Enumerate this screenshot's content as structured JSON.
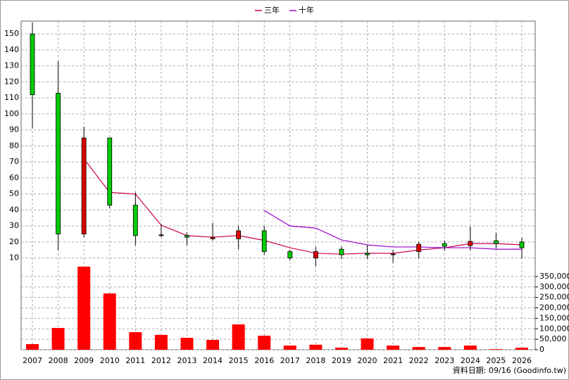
{
  "chart_data": {
    "type": "candlestick",
    "categories": [
      "2007",
      "2008",
      "2009",
      "2010",
      "2011",
      "2012",
      "2013",
      "2014",
      "2015",
      "2016",
      "2017",
      "2018",
      "2019",
      "2020",
      "2021",
      "2022",
      "2023",
      "2024",
      "2025",
      "2026"
    ],
    "open": [
      150,
      113,
      25,
      85,
      43,
      24,
      24,
      22,
      22,
      27,
      14,
      10,
      15.5,
      13,
      12,
      14,
      19,
      17.7,
      20.8,
      20
    ],
    "high": [
      157,
      133,
      92,
      85,
      51,
      31,
      26,
      32,
      30,
      30,
      15,
      17,
      17,
      18,
      15,
      20,
      21,
      29.6,
      25.7,
      22.6
    ],
    "low": [
      91,
      15,
      23,
      41,
      18,
      23,
      18,
      21,
      15.5,
      12,
      8.5,
      5,
      9.4,
      9.4,
      7,
      9.8,
      14.7,
      14.7,
      16,
      9.8
    ],
    "close": [
      112,
      25,
      85,
      43,
      24,
      24.5,
      23,
      23,
      27,
      14,
      10,
      14,
      12,
      12,
      12.5,
      18.6,
      17.3,
      20.4,
      19,
      16.4
    ],
    "up_color": "#dd0000",
    "down_color": "#00cc00",
    "series": [
      {
        "name": "三年",
        "color": "#cc0055",
        "values": [
          null,
          null,
          72,
          51,
          50,
          30.5,
          24,
          23,
          24,
          21,
          16.4,
          13,
          12.4,
          13,
          12.9,
          15,
          16.4,
          19,
          19,
          18.2
        ]
      },
      {
        "name": "十年",
        "color": "#9900cc",
        "values": [
          null,
          null,
          null,
          null,
          null,
          null,
          null,
          null,
          null,
          39.7,
          30,
          28.7,
          21.3,
          18.2,
          16.9,
          16.9,
          16.4,
          16.4,
          15.5,
          15.5
        ]
      }
    ],
    "ylim": [
      5,
      158
    ],
    "yticks": [
      10,
      20,
      30,
      40,
      50,
      60,
      70,
      80,
      90,
      100,
      110,
      120,
      130,
      140,
      150
    ],
    "volume": {
      "color": "#ff0000",
      "values": [
        27000,
        104000,
        397000,
        269000,
        84000,
        71000,
        57000,
        47000,
        121000,
        67000,
        20000,
        24000,
        10000,
        54000,
        20000,
        13000,
        13000,
        20000,
        3000,
        10000
      ]
    },
    "y2lim": [
      0,
      400000
    ],
    "y2ticks": [
      0,
      {
        "value": 50000,
        "label": "50,000"
      },
      {
        "value": 100000,
        "label": "100,000"
      },
      {
        "value": 150000,
        "label": "150,000"
      },
      {
        "value": 200000,
        "label": "200,000"
      },
      {
        "value": 250000,
        "label": "250,000"
      },
      {
        "value": 300000,
        "label": "300,000"
      },
      {
        "value": 350000,
        "label": "350,000"
      }
    ],
    "grid": true,
    "footnote": "資料日期: 09/16 (Goodinfo.tw)"
  }
}
